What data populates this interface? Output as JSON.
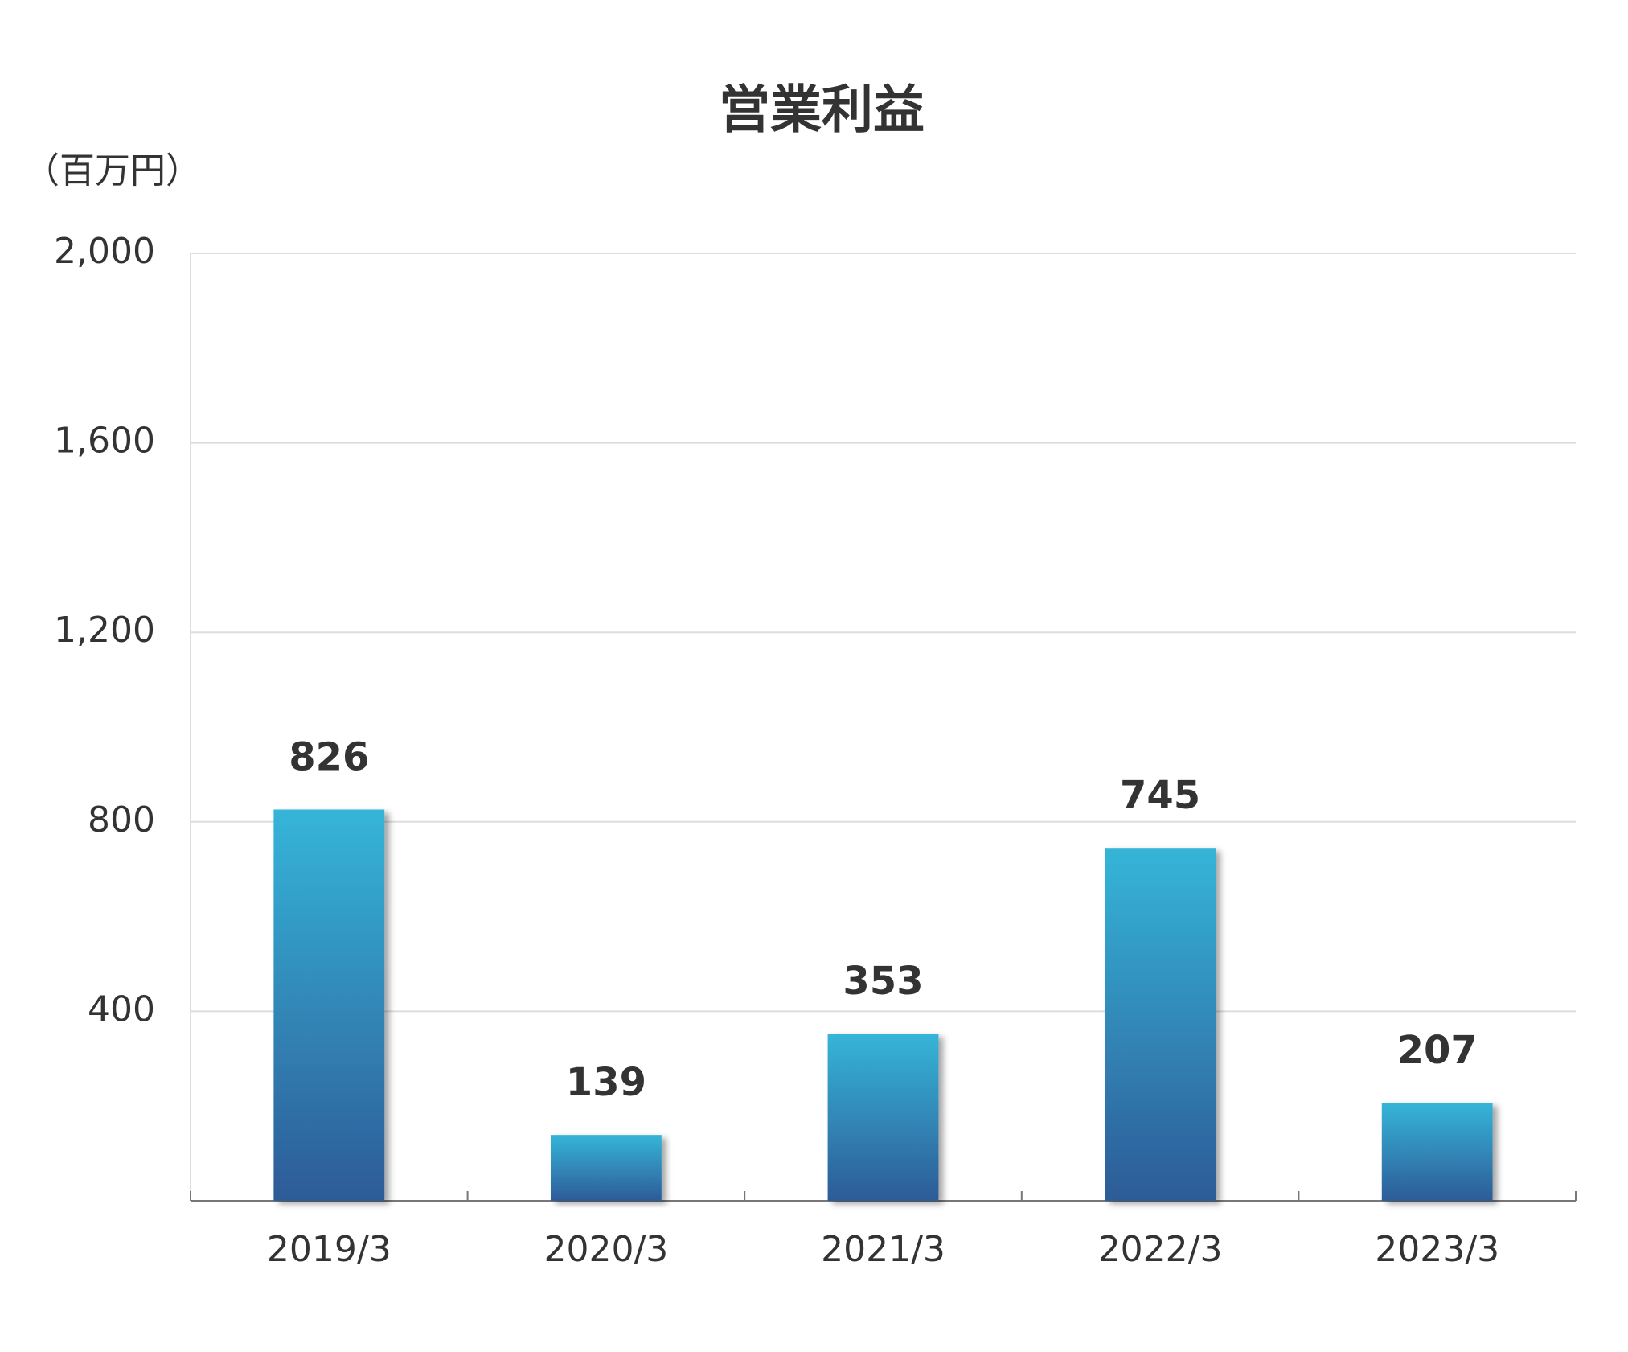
{
  "chart_data": {
    "type": "bar",
    "title": "営業利益",
    "y_axis_label": "（百万円）",
    "categories": [
      "2019/3",
      "2020/3",
      "2021/3",
      "2022/3",
      "2023/3"
    ],
    "values": [
      826,
      139,
      353,
      745,
      207
    ],
    "color": [
      "#35b5d8",
      "#2d5b97"
    ],
    "ylim": [
      0,
      2000
    ],
    "yticks": [
      400,
      800,
      {
        "value": 1200,
        "label": "1,200"
      },
      {
        "value": 1600,
        "label": "1,600"
      },
      {
        "value": 2000,
        "label": "2,000"
      }
    ],
    "grid": true
  }
}
